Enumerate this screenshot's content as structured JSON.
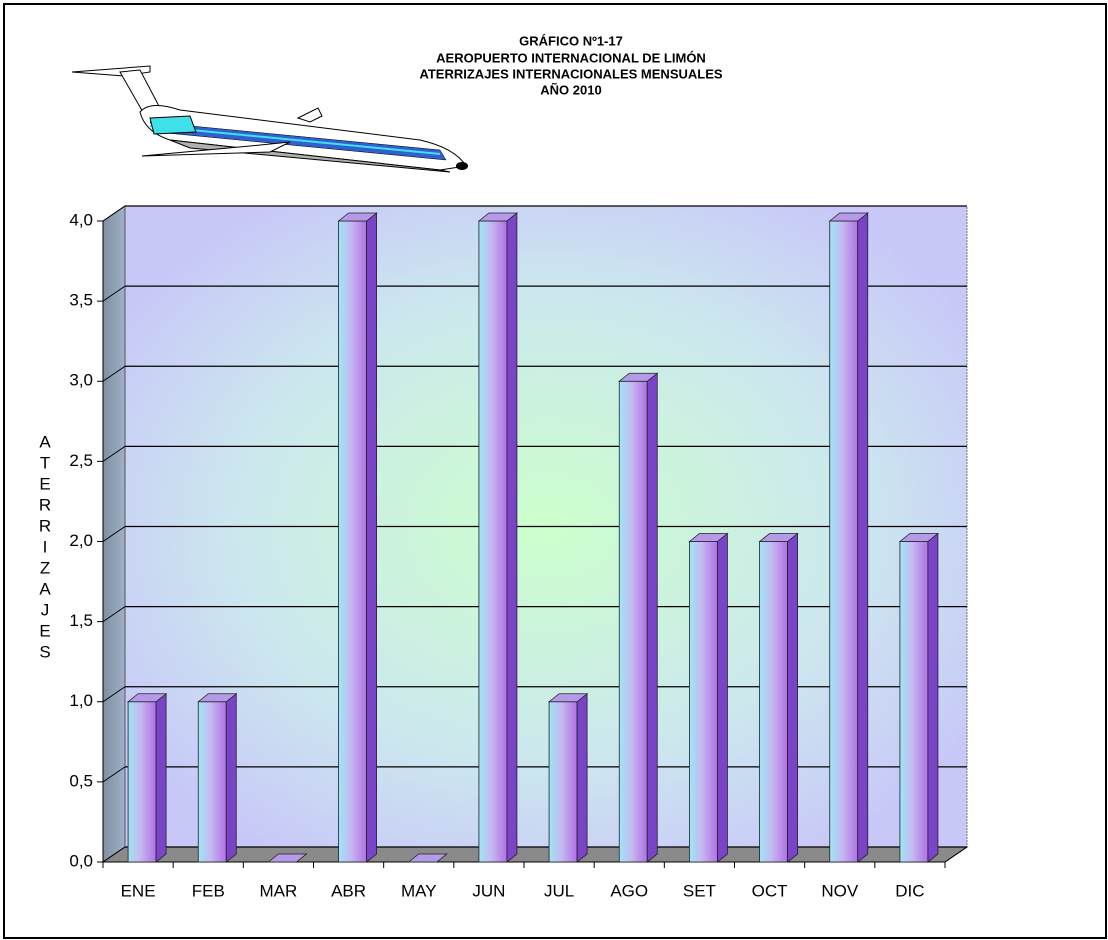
{
  "chart_data": {
    "type": "bar3d",
    "title_lines": [
      "GRÁFICO Nº1-17",
      "AEROPUERTO INTERNACIONAL DE LIMÓN",
      "ATERRIZAJES INTERNACIONALES MENSUALES",
      "AÑO 2010"
    ],
    "y_label": "ATERRIZAJES",
    "categories": [
      "ENE",
      "FEB",
      "MAR",
      "ABR",
      "MAY",
      "JUN",
      "JUL",
      "AGO",
      "SET",
      "OCT",
      "NOV",
      "DIC"
    ],
    "values": [
      1,
      1,
      0,
      4,
      0,
      4,
      1,
      3,
      2,
      2,
      4,
      2
    ],
    "ylim": [
      0,
      4
    ],
    "yticks": [
      {
        "value": 0,
        "label": "0,0"
      },
      {
        "value": 0.5,
        "label": "0,5"
      },
      {
        "value": 1,
        "label": "1,0"
      },
      {
        "value": 1.5,
        "label": "1,5"
      },
      {
        "value": 2,
        "label": "2,0"
      },
      {
        "value": 2.5,
        "label": "2,5"
      },
      {
        "value": 3,
        "label": "3,0"
      },
      {
        "value": 3.5,
        "label": "3,5"
      },
      {
        "value": 4,
        "label": "4,0"
      }
    ],
    "grid": true
  }
}
